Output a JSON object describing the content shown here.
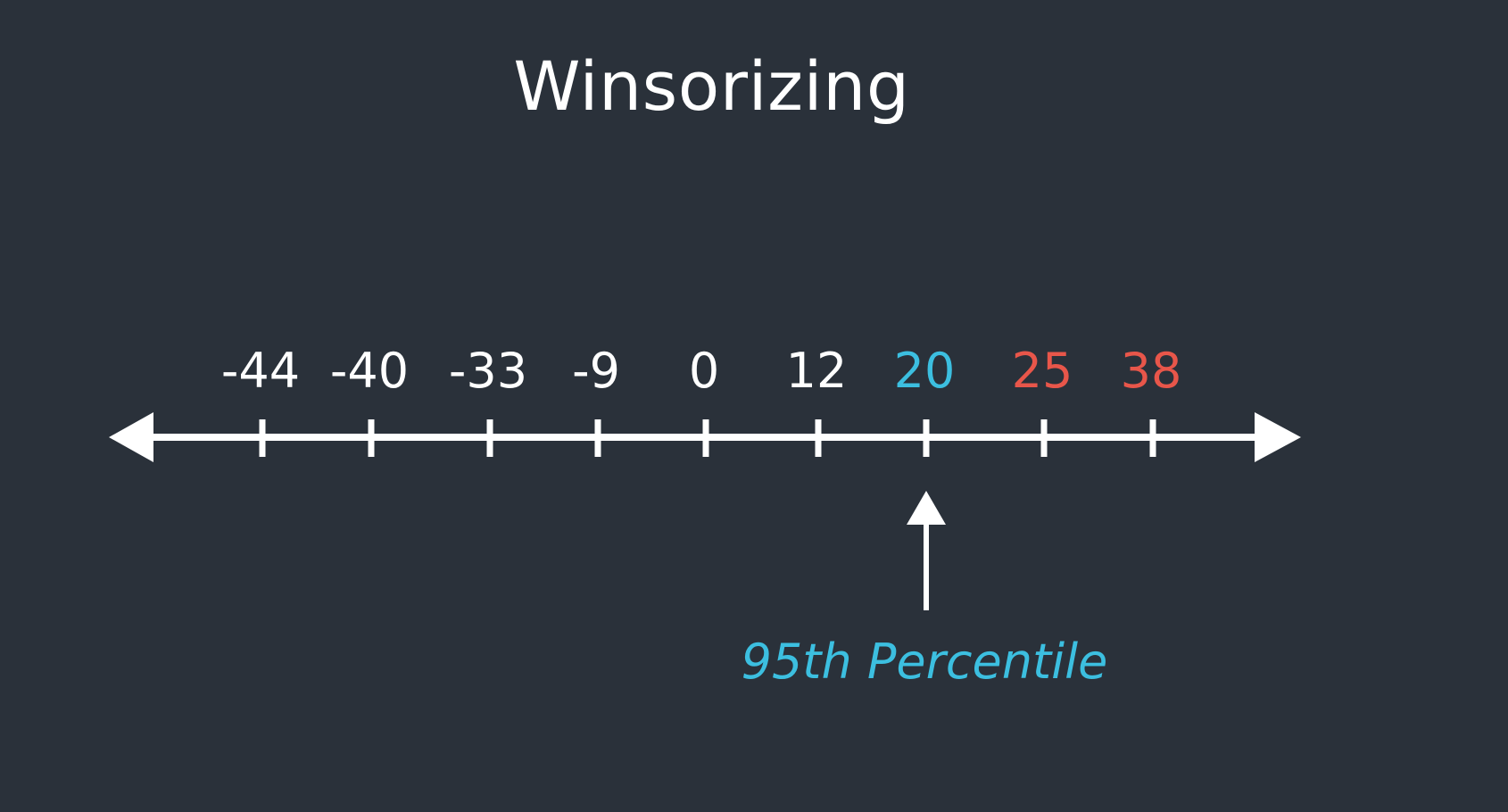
{
  "title": "Winsorizing",
  "colors": {
    "background": "#2a313a",
    "axis": "#ffffff",
    "normal": "#ffffff",
    "percentile": "#3cbfe0",
    "outlier": "#e8564a"
  },
  "number_line": {
    "points": [
      {
        "label": "-44",
        "status": "normal"
      },
      {
        "label": "-40",
        "status": "normal"
      },
      {
        "label": "-33",
        "status": "normal"
      },
      {
        "label": "-9",
        "status": "normal"
      },
      {
        "label": "0",
        "status": "normal"
      },
      {
        "label": "12",
        "status": "normal"
      },
      {
        "label": "20",
        "status": "percentile"
      },
      {
        "label": "25",
        "status": "outlier"
      },
      {
        "label": "38",
        "status": "outlier"
      }
    ],
    "marker": {
      "label": "95th Percentile",
      "points_to": "20"
    }
  }
}
